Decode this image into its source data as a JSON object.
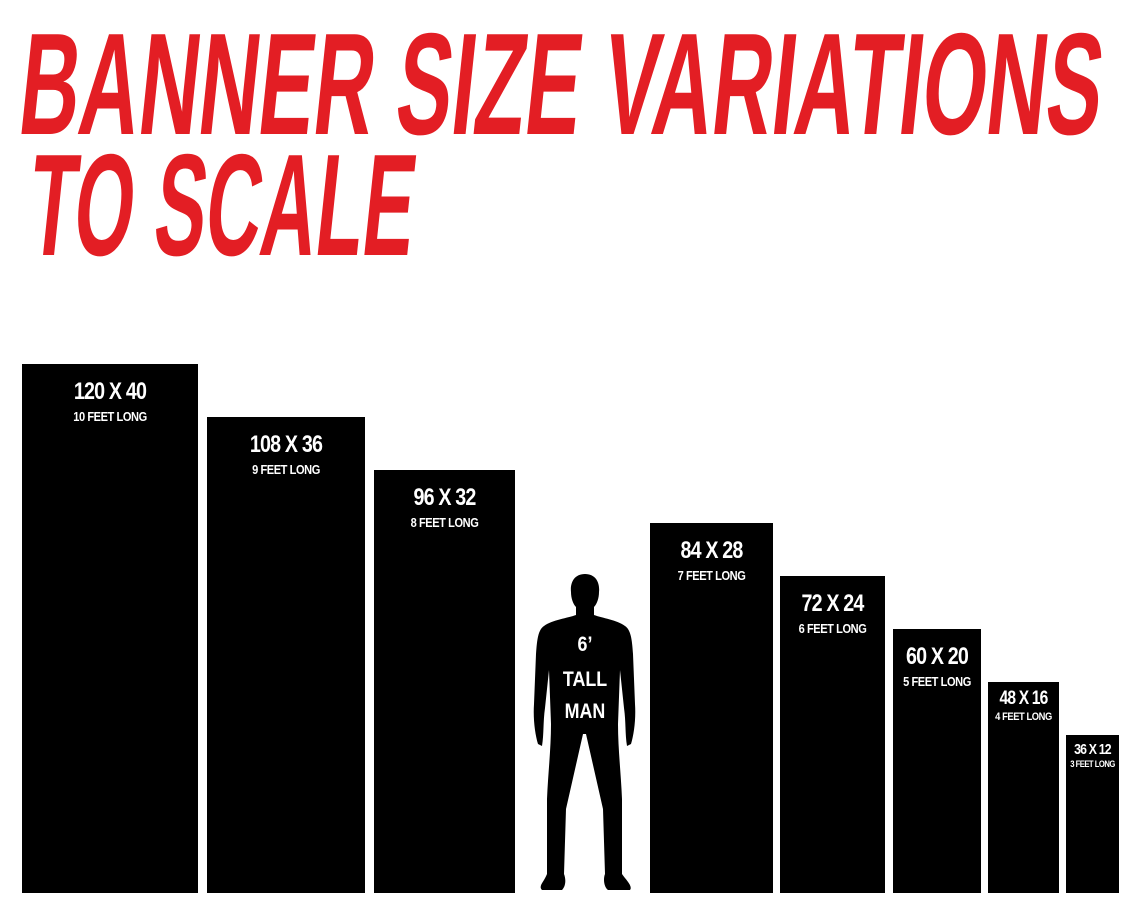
{
  "title": {
    "line1": "BANNER SIZE VARIATIONS",
    "line2": "TO SCALE",
    "color": "#e31e24"
  },
  "banners": [
    {
      "size": "120 X 40",
      "length": "10 FEET LONG"
    },
    {
      "size": "108 X 36",
      "length": "9 FEET LONG"
    },
    {
      "size": "96 X 32",
      "length": "8 FEET LONG"
    },
    {
      "size": "84 X 28",
      "length": "7 FEET LONG"
    },
    {
      "size": "72 X 24",
      "length": "6 FEET LONG"
    },
    {
      "size": "60 X 20",
      "length": "5 FEET LONG"
    },
    {
      "size": "48 X 16",
      "length": "4 FEET LONG"
    },
    {
      "size": "36 X 12",
      "length": "3 FEET LONG"
    }
  ],
  "man": {
    "line1": "6’",
    "line2": "TALL",
    "line3": "MAN"
  },
  "colors": {
    "bar": "#000000",
    "text": "#ffffff"
  }
}
